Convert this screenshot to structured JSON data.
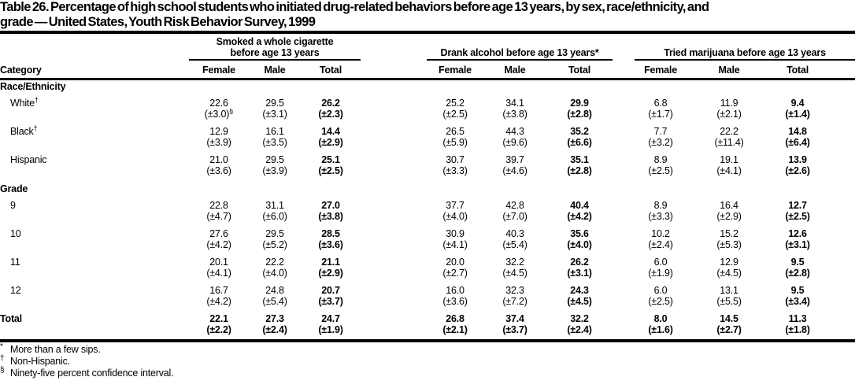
{
  "title": {
    "lines": [
      "Table 26. Percentage of high school students who initiated drug-related behaviors before age 13 years, by sex, race/ethnicity, and",
      "grade — United States, Youth Risk Behavior Survey, 1999"
    ]
  },
  "header": {
    "category": "Category",
    "groups": [
      {
        "name": "cigarette",
        "label_line1": "Smoked a whole cigarette",
        "label_line2": "before age 13 years",
        "subcols": [
          "Female",
          "Male",
          "Total"
        ]
      },
      {
        "name": "alcohol",
        "label": "Drank alcohol before age 13 years*",
        "subcols": [
          "Female",
          "Male",
          "Total"
        ]
      },
      {
        "name": "marijuana",
        "label": "Tried marijuana before age 13 years",
        "subcols": [
          "Female",
          "Male",
          "Total"
        ]
      }
    ]
  },
  "body": {
    "sections": [
      {
        "label": "Race/Ethnicity",
        "rows": [
          {
            "label": "White",
            "label_sup": "†",
            "indent": true,
            "values": [
              "22.6",
              "29.5",
              "26.2",
              "25.2",
              "34.1",
              "29.9",
              "6.8",
              "11.9",
              "9.4"
            ],
            "ci": [
              "(±3.0)§",
              "(±3.1)",
              "(±2.3)",
              "(±2.5)",
              "(±3.8)",
              "(±2.8)",
              "(±1.7)",
              "(±2.1)",
              "(±1.4)"
            ]
          },
          {
            "label": "Black",
            "label_sup": "†",
            "indent": true,
            "values": [
              "12.9",
              "16.1",
              "14.4",
              "26.5",
              "44.3",
              "35.2",
              "7.7",
              "22.2",
              "14.8"
            ],
            "ci": [
              "(±3.9)",
              "(±3.5)",
              "(±2.9)",
              "(±5.9)",
              "(±9.6)",
              "(±6.6)",
              "(±3.2)",
              "(±11.4)",
              "(±6.4)"
            ]
          },
          {
            "label": "Hispanic",
            "indent": true,
            "values": [
              "21.0",
              "29.5",
              "25.1",
              "30.7",
              "39.7",
              "35.1",
              "8.9",
              "19.1",
              "13.9"
            ],
            "ci": [
              "(±3.6)",
              "(±3.9)",
              "(±2.5)",
              "(±3.3)",
              "(±4.6)",
              "(±2.8)",
              "(±2.5)",
              "(±4.1)",
              "(±2.6)"
            ]
          }
        ]
      },
      {
        "label": "Grade",
        "rows": [
          {
            "label": "9",
            "indent": true,
            "values": [
              "22.8",
              "31.1",
              "27.0",
              "37.7",
              "42.8",
              "40.4",
              "8.9",
              "16.4",
              "12.7"
            ],
            "ci": [
              "(±4.7)",
              "(±6.0)",
              "(±3.8)",
              "(±4.0)",
              "(±7.0)",
              "(±4.2)",
              "(±3.3)",
              "(±2.9)",
              "(±2.5)"
            ]
          },
          {
            "label": "10",
            "indent": true,
            "values": [
              "27.6",
              "29.5",
              "28.5",
              "30.9",
              "40.3",
              "35.6",
              "10.2",
              "15.2",
              "12.6"
            ],
            "ci": [
              "(±4.2)",
              "(±5.2)",
              "(±3.6)",
              "(±4.1)",
              "(±5.4)",
              "(±4.0)",
              "(±2.4)",
              "(±5.3)",
              "(±3.1)"
            ]
          },
          {
            "label": "11",
            "indent": true,
            "values": [
              "20.1",
              "22.2",
              "21.1",
              "20.0",
              "32.2",
              "26.2",
              "6.0",
              "12.9",
              "9.5"
            ],
            "ci": [
              "(±4.1)",
              "(±4.0)",
              "(±2.9)",
              "(±2.7)",
              "(±4.5)",
              "(±3.1)",
              "(±1.9)",
              "(±4.5)",
              "(±2.8)"
            ]
          },
          {
            "label": "12",
            "indent": true,
            "values": [
              "16.7",
              "24.8",
              "20.7",
              "16.0",
              "32.3",
              "24.3",
              "6.0",
              "13.1",
              "9.5"
            ],
            "ci": [
              "(±4.2)",
              "(±5.4)",
              "(±3.7)",
              "(±3.6)",
              "(±7.2)",
              "(±4.5)",
              "(±2.5)",
              "(±5.5)",
              "(±3.4)"
            ]
          }
        ]
      }
    ],
    "total": {
      "label": "Total",
      "values": [
        "22.1",
        "27.3",
        "24.7",
        "26.8",
        "37.4",
        "32.2",
        "8.0",
        "14.5",
        "11.3"
      ],
      "ci": [
        "(±2.2)",
        "(±2.4)",
        "(±1.9)",
        "(±2.1)",
        "(±3.7)",
        "(±2.4)",
        "(±1.6)",
        "(±2.7)",
        "(±1.8)"
      ]
    }
  },
  "footnotes": [
    {
      "marker": "*",
      "text": "More than a few sips."
    },
    {
      "marker": "†",
      "text": "Non-Hispanic."
    },
    {
      "marker": "§",
      "text": "Ninety-five percent confidence interval."
    }
  ]
}
